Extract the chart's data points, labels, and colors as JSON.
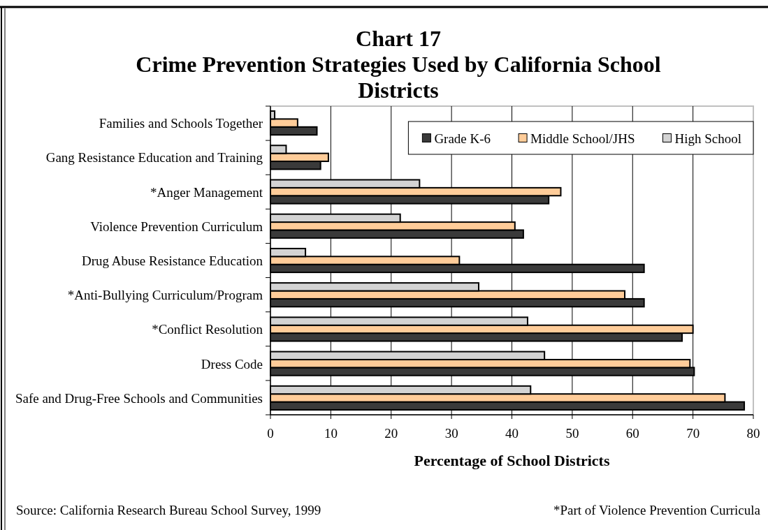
{
  "chart_data": {
    "type": "bar",
    "orientation": "horizontal",
    "title": "Chart 17",
    "subtitle": "Crime Prevention Strategies Used by California School Districts",
    "xlabel": "Percentage of School Districts",
    "categories": [
      "Families and Schools Together",
      "Gang Resistance Education and Training",
      "*Anger Management",
      "Violence Prevention Curriculum",
      "Drug Abuse Resistance Education",
      "*Anti-Bullying Curriculum/Program",
      "*Conflict Resolution",
      "Dress Code",
      "Safe and Drug-Free Schools and Communities"
    ],
    "series": [
      {
        "name": "Grade K-6",
        "color": "#3a3a3a",
        "values": [
          7.7,
          8.3,
          46.1,
          41.9,
          61.9,
          61.9,
          68.2,
          70.2,
          78.5
        ]
      },
      {
        "name": "Middle School/JHS",
        "color": "#ffcc99",
        "values": [
          4.5,
          9.6,
          48.1,
          40.5,
          31.3,
          58.7,
          70.0,
          69.5,
          75.3
        ]
      },
      {
        "name": "High School",
        "color": "#d3d3d3",
        "values": [
          0.7,
          2.6,
          24.7,
          21.5,
          5.8,
          34.5,
          42.6,
          45.4,
          43.1
        ]
      }
    ],
    "xlim": [
      0,
      80
    ],
    "xticks": [
      0,
      10,
      20,
      30,
      40,
      50,
      60,
      70,
      80
    ],
    "grid": "x",
    "legend": "top right",
    "annotations": [
      "Source: California Research Bureau School Survey, 1999",
      "*Part of Violence Prevention Curricula"
    ]
  }
}
